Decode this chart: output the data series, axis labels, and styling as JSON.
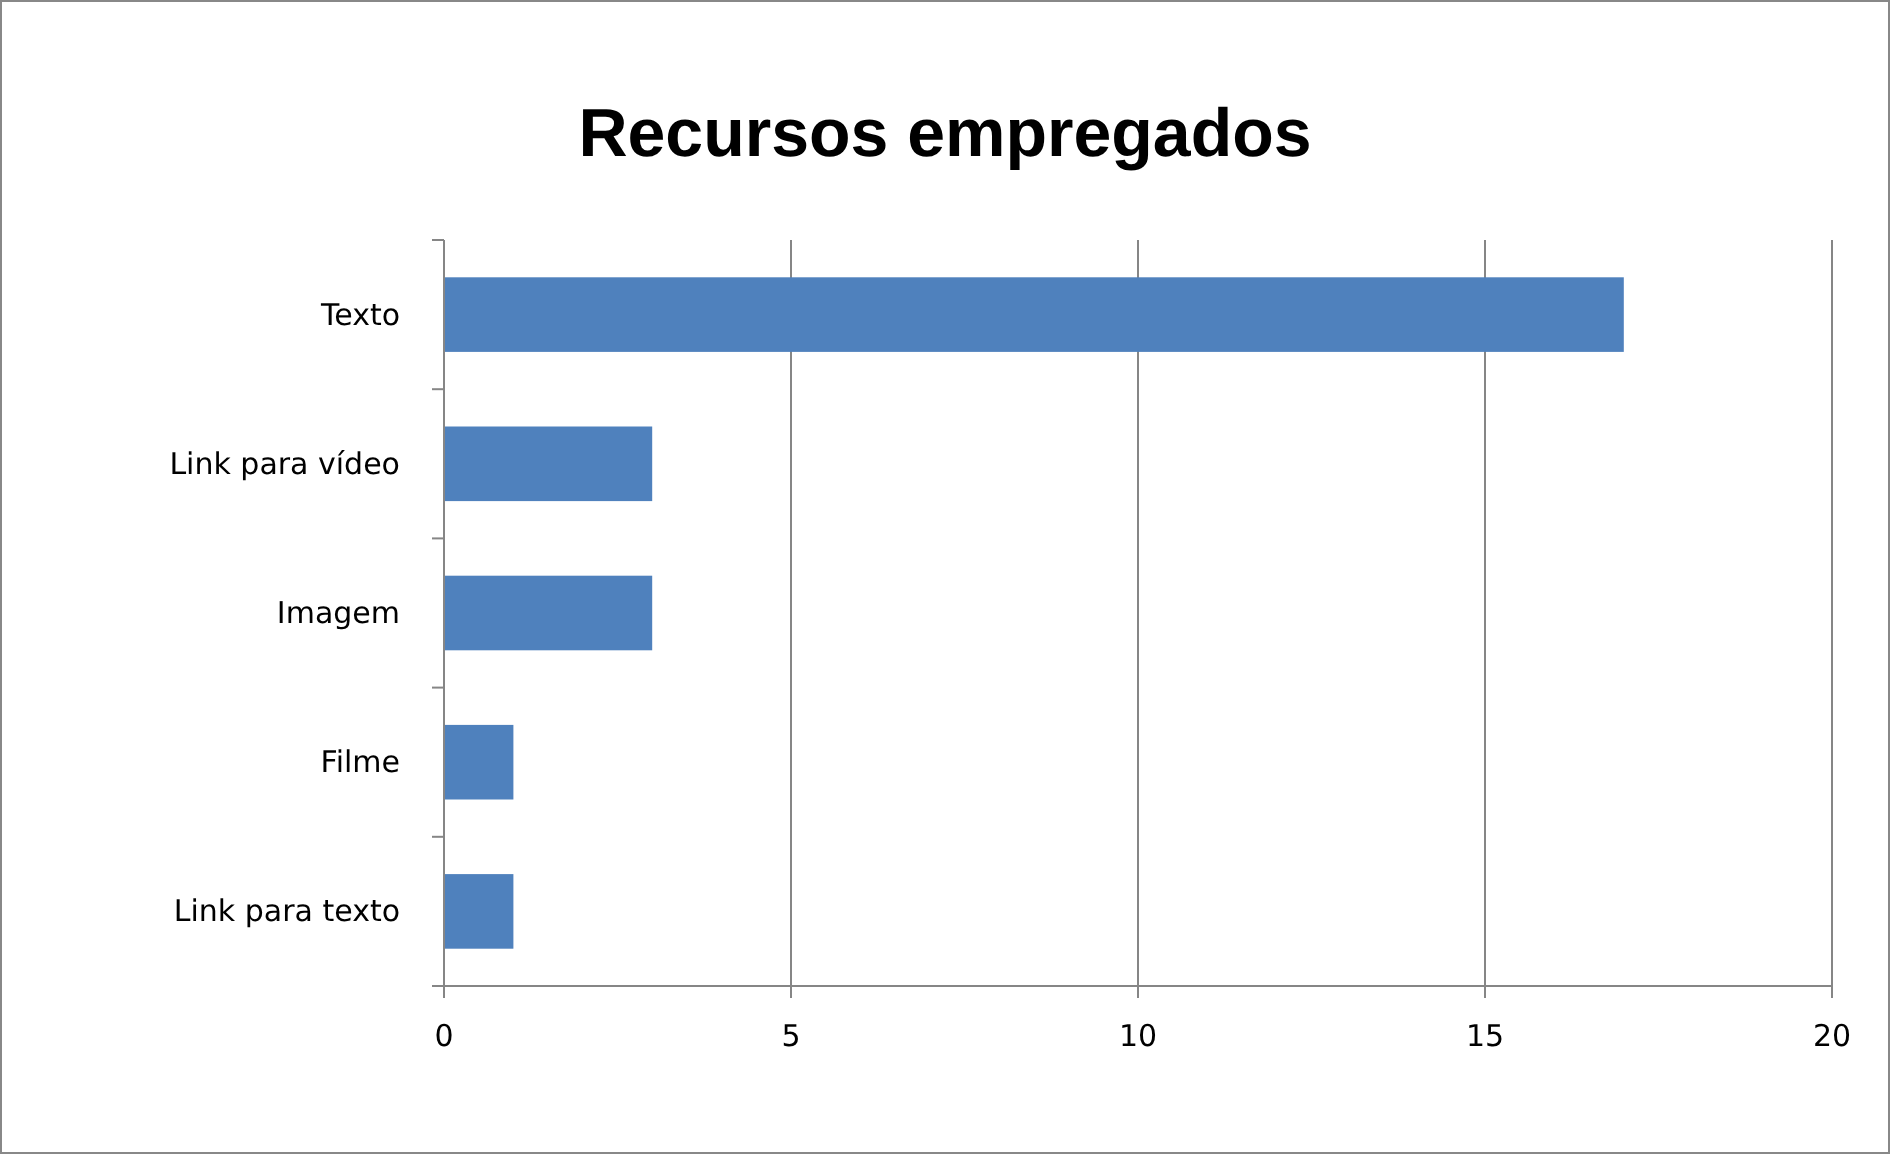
{
  "chart_data": {
    "type": "bar",
    "orientation": "horizontal",
    "title": "Recursos empregados",
    "categories": [
      "Texto",
      "Link para vídeo",
      "Imagem",
      "Filme",
      "Link para texto"
    ],
    "values": [
      17,
      3,
      3,
      1,
      1
    ],
    "color": "#4f81bd",
    "xlim": [
      0,
      20
    ],
    "xticks": [
      0,
      5,
      10,
      15,
      20
    ],
    "grid": "x"
  }
}
